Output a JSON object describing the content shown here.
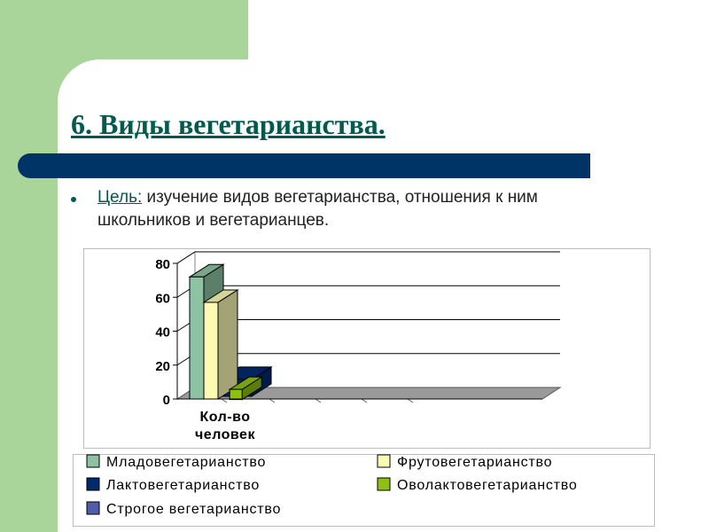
{
  "slide": {
    "title": "6. Виды вегетарианства.",
    "bullet_label": "Цель:",
    "bullet_text": " изучение видов вегетарианства, отношения к ним школьников и вегетарианцев."
  },
  "chart_data": {
    "type": "bar",
    "style": "3d-clustered-column",
    "categories": [
      "Кол-во человек"
    ],
    "category_label_lines": [
      "Кол-во",
      "человек"
    ],
    "ylim": [
      0,
      80
    ],
    "yticks": [
      0,
      20,
      40,
      60,
      80
    ],
    "grid": "horizontal",
    "legend_position": "bottom",
    "series": [
      {
        "name": "Младовегетарианство",
        "values": [
          72
        ],
        "color": "#8dc3a3"
      },
      {
        "name": "Лактовегетарианство",
        "values": [
          10
        ],
        "color": "#002a6e"
      },
      {
        "name": "Строгое вегетарианство",
        "values": [
          1
        ],
        "color": "#4f5ea8"
      },
      {
        "name": "Фрутовегетарианство",
        "values": [
          57
        ],
        "color": "#fbfbb4"
      },
      {
        "name": "Оволактовегетарианство",
        "values": [
          6
        ],
        "color": "#8fbf11"
      }
    ]
  }
}
